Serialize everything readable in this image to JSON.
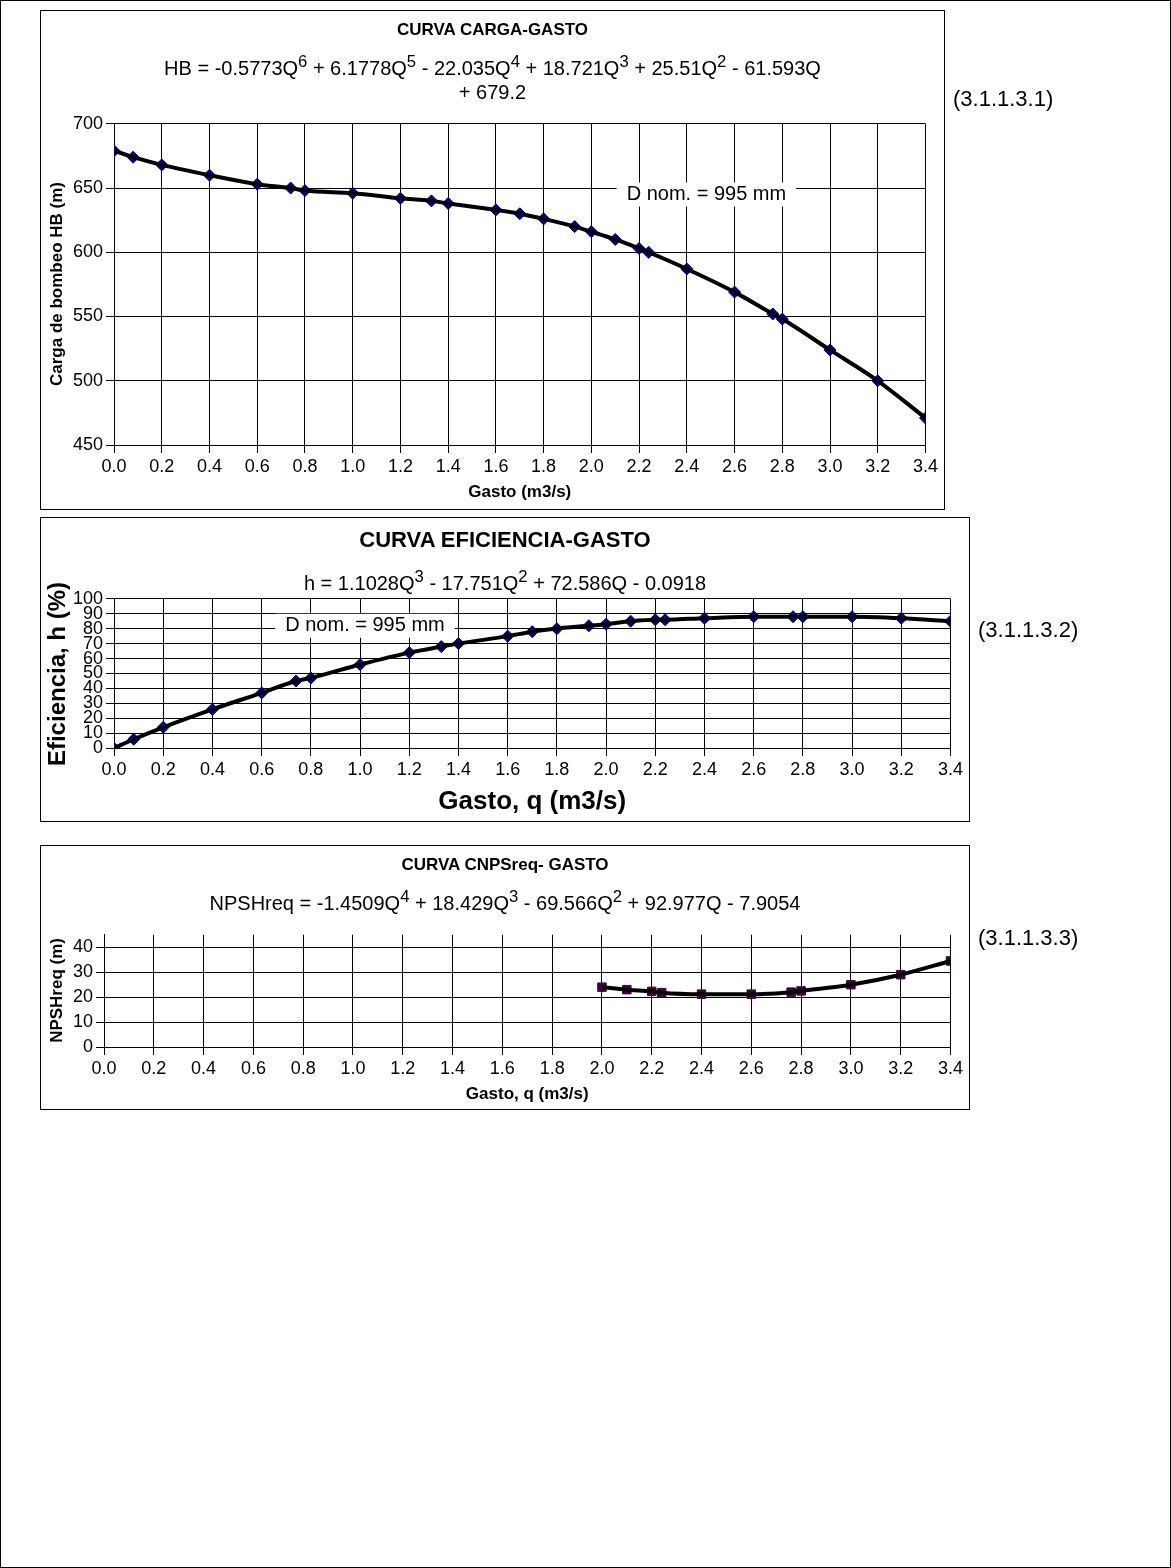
{
  "chart_data": [
    {
      "type": "line",
      "title": "CURVA CARGA-GASTO",
      "subtitle": "HB = -0.5773Q$^{6}$ + 6.1778Q$^{5}$ - 22.035Q$^{4}$ + 18.721Q$^{3}$ + 25.51Q$^{2}$ - 61.593Q + 679.2",
      "xlabel": "Gasto (m3/s)",
      "ylabel": "Carga de bombeo HB (m)",
      "annotations": [
        "(3.1.1.3.1)",
        "D nom. = 995 mm"
      ],
      "grid": true,
      "x": [
        0,
        0.08,
        0.2,
        0.4,
        0.6,
        0.74,
        0.8,
        1.0,
        1.2,
        1.33,
        1.4,
        1.6,
        1.7,
        1.8,
        1.93,
        2.0,
        2.1,
        2.2,
        2.24,
        2.4,
        2.6,
        2.76,
        2.8,
        3.0,
        3.2,
        3.4
      ],
      "series": [
        {
          "type": "scatter",
          "marker": "diamond",
          "color": "#000080",
          "values": [
            679,
            674,
            668,
            660,
            653,
            650,
            648,
            646,
            642,
            640,
            638,
            633,
            630,
            626,
            620,
            616,
            610,
            603,
            600,
            587,
            569,
            552,
            548,
            524,
            500,
            471
          ]
        },
        {
          "color": "#000000",
          "values": [
            679,
            674,
            668,
            660,
            653,
            650,
            648,
            646,
            642,
            640,
            638,
            633,
            630,
            626,
            620,
            616,
            610,
            603,
            600,
            587,
            569,
            552,
            548,
            524,
            500,
            471
          ]
        }
      ],
      "xlim": [
        0,
        3.4
      ],
      "xticks": [
        {
          "value": 0,
          "label": "0.0"
        },
        0.2,
        0.4,
        0.6,
        0.8,
        {
          "value": 1,
          "label": "1.0"
        },
        1.2,
        1.4,
        1.6,
        1.8,
        {
          "value": 2,
          "label": "2.0"
        },
        2.2,
        2.4,
        2.6,
        2.8,
        {
          "value": 3,
          "label": "3.0"
        },
        3.2,
        3.4
      ],
      "ylim": [
        450,
        700
      ],
      "yticks": [
        450,
        500,
        550,
        600,
        650,
        700
      ]
    },
    {
      "type": "line",
      "title": "CURVA EFICIENCIA-GASTO",
      "subtitle": "h  = 1.1028Q$^{3}$ - 17.751Q$^{2}$ + 72.586Q - 0.0918",
      "xlabel": "Gasto, q (m3/s)",
      "ylabel": "Eficiencia, h  (%)",
      "annotations": [
        "(3.1.1.3.2)",
        "D nom. = 995 mm"
      ],
      "grid": true,
      "x": [
        0,
        0.08,
        0.2,
        0.4,
        0.6,
        0.74,
        0.8,
        1.0,
        1.2,
        1.33,
        1.4,
        1.6,
        1.7,
        1.8,
        1.93,
        2.0,
        2.1,
        2.2,
        2.24,
        2.4,
        2.6,
        2.76,
        2.8,
        3.0,
        3.2,
        3.4
      ],
      "series": [
        {
          "type": "scatter",
          "marker": "diamond",
          "color": "#000080",
          "values": [
            0,
            6,
            14,
            26,
            37,
            45,
            47,
            56,
            64,
            68,
            70,
            75,
            78,
            80,
            82,
            83,
            85,
            86,
            86,
            87,
            88,
            88,
            88,
            88,
            87,
            85
          ]
        },
        {
          "color": "#000000",
          "values": [
            0,
            6,
            14,
            26,
            37,
            45,
            47,
            56,
            64,
            68,
            70,
            75,
            78,
            80,
            82,
            83,
            85,
            86,
            86,
            87,
            88,
            88,
            88,
            88,
            87,
            85
          ]
        }
      ],
      "xlim": [
        0,
        3.4
      ],
      "xticks": [
        {
          "value": 0,
          "label": "0.0"
        },
        0.2,
        0.4,
        0.6,
        0.8,
        {
          "value": 1,
          "label": "1.0"
        },
        1.2,
        1.4,
        1.6,
        1.8,
        {
          "value": 2,
          "label": "2.0"
        },
        2.2,
        2.4,
        2.6,
        2.8,
        {
          "value": 3,
          "label": "3.0"
        },
        3.2,
        3.4
      ],
      "ylim": [
        0,
        100
      ],
      "yticks": [
        0,
        10,
        20,
        30,
        40,
        50,
        60,
        70,
        80,
        90,
        100
      ]
    },
    {
      "type": "line",
      "title": "CURVA CNPSreq- GASTO",
      "subtitle": "NPSHreq = -1.4509Q$^{4}$ + 18.429Q$^{3}$ -  69.566Q$^{2}$ + 92.977Q - 7.9054",
      "xlabel": "Gasto, q (m3/s)",
      "ylabel": "NPSHreq (m)",
      "annotations": [
        "(3.1.1.3.3)"
      ],
      "grid": true,
      "x": [
        2.0,
        2.1,
        2.2,
        2.24,
        2.4,
        2.6,
        2.76,
        2.8,
        3.0,
        3.2,
        3.4
      ],
      "series": [
        {
          "type": "scatter",
          "marker": "square",
          "color": "#400040",
          "values": [
            24,
            23,
            22.3,
            21.8,
            21.2,
            21.2,
            22,
            22.5,
            25,
            29,
            34.5
          ]
        },
        {
          "color": "#000000",
          "values": [
            24,
            23,
            22.3,
            21.8,
            21.2,
            21.2,
            22,
            22.5,
            25,
            29,
            34.5
          ]
        }
      ],
      "xlim": [
        0,
        3.4
      ],
      "xticks": [
        {
          "value": 0,
          "label": "0.0"
        },
        0.2,
        0.4,
        0.6,
        0.8,
        {
          "value": 1,
          "label": "1.0"
        },
        1.2,
        1.4,
        1.6,
        1.8,
        {
          "value": 2,
          "label": "2.0"
        },
        2.2,
        2.4,
        2.6,
        2.8,
        {
          "value": 3,
          "label": "3.0"
        },
        3.2,
        3.4
      ],
      "ylim": [
        0,
        45
      ],
      "yticks": [
        0,
        10,
        20,
        30,
        40
      ]
    }
  ]
}
